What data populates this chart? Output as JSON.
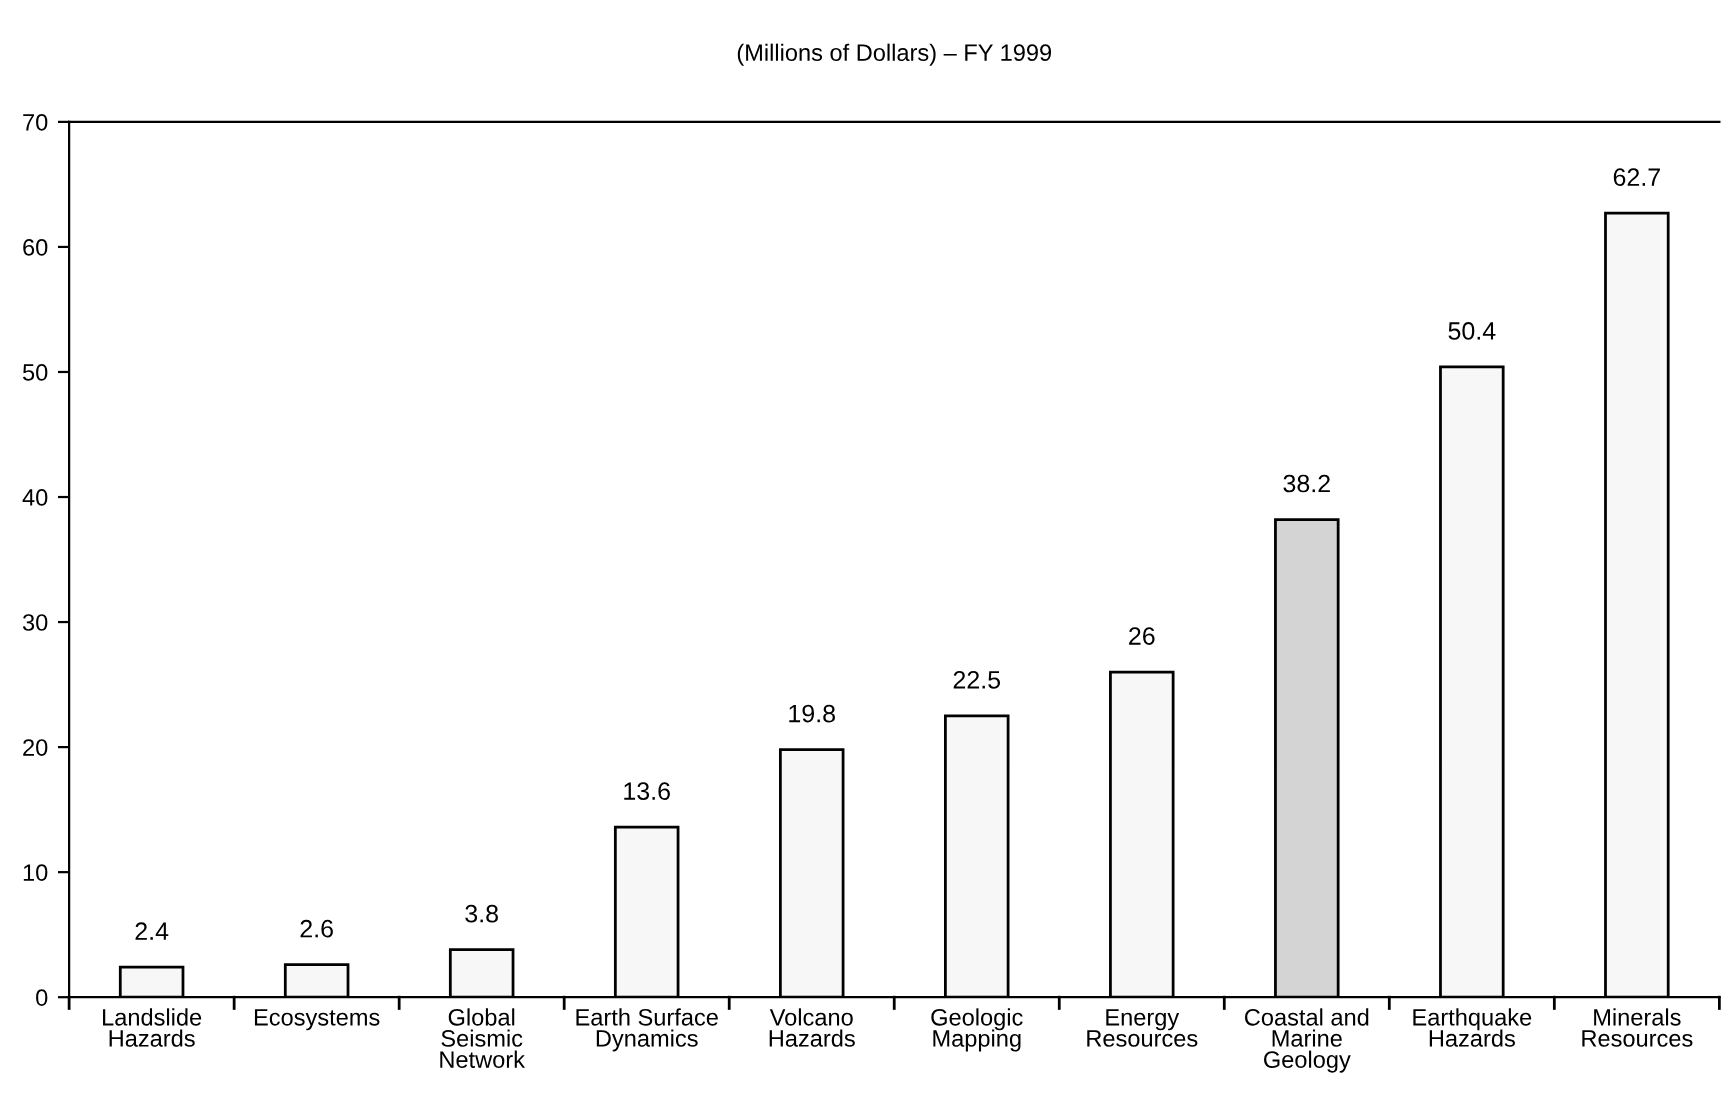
{
  "chart_data": {
    "type": "bar",
    "title": "(Millions of Dollars) – FY 1999",
    "categories": [
      "Landslide\nHazards",
      "Ecosystems",
      "Global\nSeismic\nNetwork",
      "Earth Surface\nDynamics",
      "Volcano\nHazards",
      "Geologic\nMapping",
      "Energy\nResources",
      "Coastal and\nMarine\nGeology",
      "Earthquake\nHazards",
      "Minerals\nResources"
    ],
    "values": [
      2.4,
      2.6,
      3.8,
      13.6,
      19.8,
      22.5,
      26,
      38.2,
      50.4,
      62.7
    ],
    "colors": [
      "#f7f7f7",
      "#f7f7f7",
      "#f7f7f7",
      "#f7f7f7",
      "#f7f7f7",
      "#f7f7f7",
      "#f7f7f7",
      "#d4d4d4",
      "#f7f7f7",
      "#f7f7f7"
    ],
    "ylim": [
      0,
      70
    ],
    "yticks": [
      0,
      10,
      20,
      30,
      40,
      50,
      60,
      70
    ],
    "data_labels": true,
    "grid": false,
    "legend": false
  }
}
